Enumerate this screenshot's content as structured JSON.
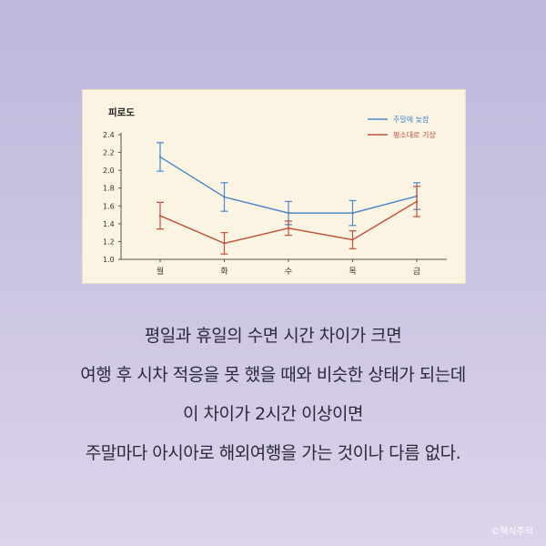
{
  "chart_data": {
    "type": "line",
    "ylabel": "피로도",
    "categories": [
      "월",
      "화",
      "수",
      "목",
      "금"
    ],
    "ylim": [
      1.0,
      2.4
    ],
    "yticks": [
      "2.4",
      "2.2",
      "2.0",
      "1.8",
      "1.6",
      "1.4",
      "1.2",
      "1.0"
    ],
    "legend_position": "top-right",
    "grid": false,
    "series": [
      {
        "name": "주말에 늦잠",
        "color": "#4a86c8",
        "values": [
          2.15,
          1.7,
          1.52,
          1.52,
          1.71
        ],
        "error": [
          0.16,
          0.16,
          0.13,
          0.14,
          0.15
        ]
      },
      {
        "name": "평소대로 기상",
        "color": "#c0503a",
        "values": [
          1.49,
          1.18,
          1.35,
          1.22,
          1.65
        ],
        "error": [
          0.15,
          0.12,
          0.08,
          0.1,
          0.17
        ]
      }
    ]
  },
  "caption": [
    "평일과 휴일의 수면 시간 차이가 크면",
    "여행 후 시차 적응을 못 했을 때와 비슷한 상태가 되는데",
    "이 차이가 2시간 이상이면",
    "주말마다 아시아로 해외여행을 가는 것이나 다름 없다."
  ],
  "credit": "©책식주의"
}
